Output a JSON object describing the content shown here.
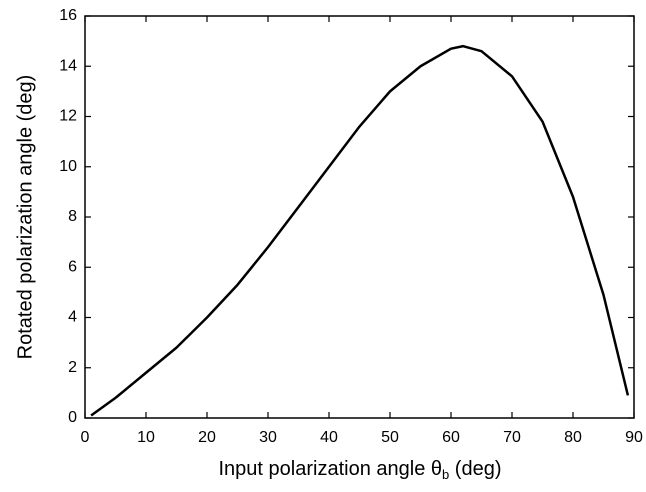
{
  "chart_data": {
    "type": "line",
    "x_label": {
      "prefix": "Input polarization angle θ",
      "subscript": "b",
      "suffix": " (deg)"
    },
    "y_label": "Rotated polarization angle (deg)",
    "series": [
      {
        "color": "#000000",
        "x": [
          1,
          5,
          10,
          15,
          20,
          25,
          30,
          35,
          40,
          45,
          50,
          55,
          60,
          62,
          65,
          70,
          75,
          80,
          85,
          89
        ],
        "values": [
          0.1,
          0.8,
          1.8,
          2.8,
          4.0,
          5.3,
          6.8,
          8.4,
          10.0,
          11.6,
          13.0,
          14.0,
          14.7,
          14.8,
          14.6,
          13.6,
          11.8,
          8.8,
          4.9,
          0.9
        ]
      }
    ],
    "xlim": [
      0,
      90
    ],
    "xticks": [
      0,
      10,
      20,
      30,
      40,
      50,
      60,
      70,
      80,
      90
    ],
    "ylim": [
      0,
      16
    ],
    "yticks": [
      0,
      2,
      4,
      6,
      8,
      10,
      12,
      14,
      16
    ]
  }
}
